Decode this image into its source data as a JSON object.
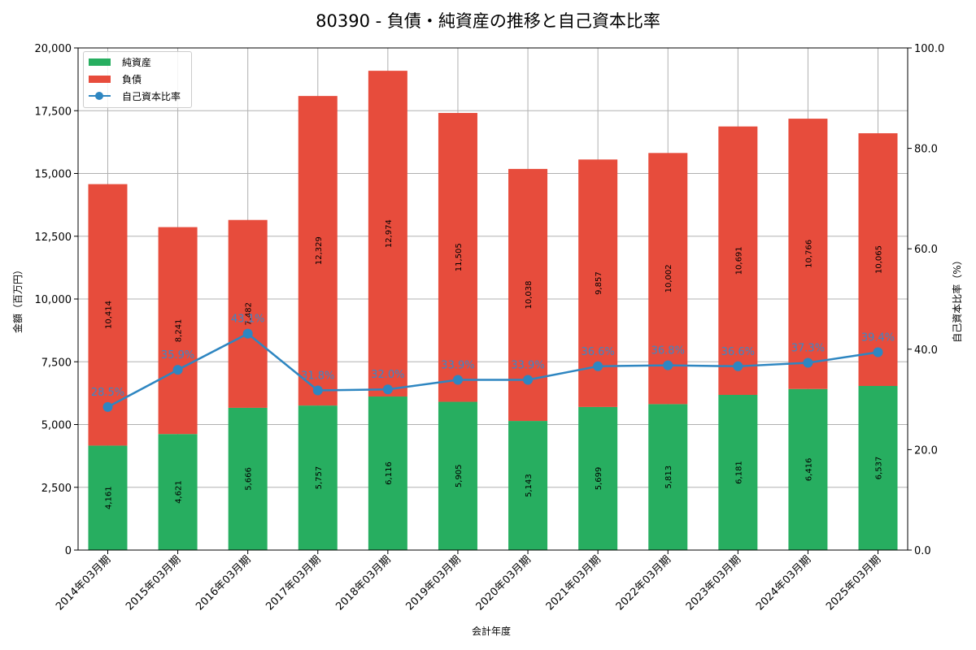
{
  "chart_data": {
    "type": "bar",
    "subtype": "stacked-bar-with-line-secondary-axis",
    "title": "80390 - 負債・純資産の推移と自己資本比率",
    "xlabel": "会計年度",
    "ylabel": "金額（百万円）",
    "ylabel_right": "自己資本比率（%）",
    "ylim": [
      0,
      20000
    ],
    "ylim_right": [
      0,
      100
    ],
    "yticks": [
      "0",
      "2,500",
      "5,000",
      "7,500",
      "10,000",
      "12,500",
      "15,000",
      "17,500",
      "20,000"
    ],
    "yticks_right": [
      "0.0",
      "20.0",
      "40.0",
      "60.0",
      "80.0",
      "100.0"
    ],
    "grid": true,
    "legend_position": "upper left",
    "categories": [
      "2014年03月期",
      "2015年03月期",
      "2016年03月期",
      "2017年03月期",
      "2018年03月期",
      "2019年03月期",
      "2020年03月期",
      "2021年03月期",
      "2022年03月期",
      "2023年03月期",
      "2024年03月期",
      "2025年03月期"
    ],
    "series": [
      {
        "name": "純資産",
        "type": "bar",
        "stack": "bottom",
        "color": "#27ae60",
        "values": [
          4161,
          4621,
          5666,
          5757,
          6116,
          5905,
          5143,
          5699,
          5813,
          6181,
          6416,
          6537
        ],
        "labels": [
          "4,161",
          "4,621",
          "5,666",
          "5,757",
          "6,116",
          "5,905",
          "5,143",
          "5,699",
          "5,813",
          "6,181",
          "6,416",
          "6,537"
        ]
      },
      {
        "name": "負債",
        "type": "bar",
        "stack": "top",
        "color": "#e74c3c",
        "values": [
          10414,
          8241,
          7482,
          12329,
          12974,
          11505,
          10038,
          9857,
          10002,
          10691,
          10766,
          10065
        ],
        "labels": [
          "10,414",
          "8,241",
          "7,482",
          "12,329",
          "12,974",
          "11,505",
          "10,038",
          "9,857",
          "10,002",
          "10,691",
          "10,766",
          "10,065"
        ]
      },
      {
        "name": "自己資本比率",
        "type": "line",
        "axis": "right",
        "color": "#2e86c1",
        "values": [
          28.5,
          35.9,
          43.1,
          31.8,
          32.0,
          33.9,
          33.9,
          36.6,
          36.8,
          36.6,
          37.3,
          39.4
        ],
        "labels": [
          "28.5%",
          "35.9%",
          "43.1%",
          "31.8%",
          "32.0%",
          "33.9%",
          "33.9%",
          "36.6%",
          "36.8%",
          "36.6%",
          "37.3%",
          "39.4%"
        ]
      }
    ]
  },
  "legend": {
    "items": [
      {
        "label": "純資産"
      },
      {
        "label": "負債"
      },
      {
        "label": "自己資本比率"
      }
    ]
  }
}
